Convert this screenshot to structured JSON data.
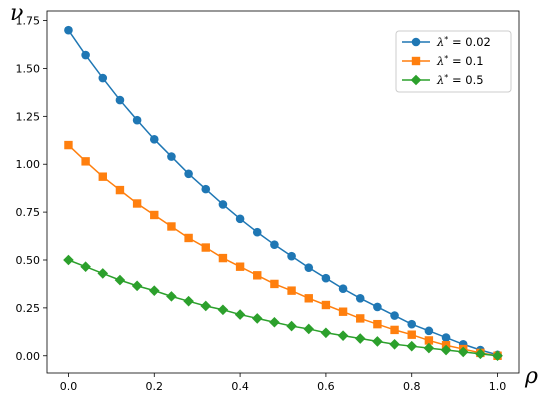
{
  "chart_data": {
    "type": "line",
    "xlabel": "ρ",
    "ylabel": "ν",
    "xlim": [
      -0.05,
      1.05
    ],
    "ylim": [
      -0.09,
      1.8
    ],
    "xticks": [
      0.0,
      0.2,
      0.4,
      0.6,
      0.8,
      1.0
    ],
    "xtick_labels": [
      "0.0",
      "0.2",
      "0.4",
      "0.6",
      "0.8",
      "1.0"
    ],
    "yticks": [
      0.0,
      0.25,
      0.5,
      0.75,
      1.0,
      1.25,
      1.5,
      1.75
    ],
    "ytick_labels": [
      "0.00",
      "0.25",
      "0.50",
      "0.75",
      "1.00",
      "1.25",
      "1.50",
      "1.75"
    ],
    "grid": false,
    "legend_position": "top-right",
    "x": [
      0.0,
      0.04,
      0.08,
      0.12,
      0.16,
      0.2,
      0.24,
      0.28,
      0.32,
      0.36,
      0.4,
      0.44,
      0.48,
      0.52,
      0.56,
      0.6,
      0.64,
      0.68,
      0.72,
      0.76,
      0.8,
      0.84,
      0.88,
      0.92,
      0.96,
      1.0
    ],
    "series": [
      {
        "name": "λ* = 0.02",
        "legend_symbol": "λ",
        "legend_value": "0.02",
        "color": "#1f77b4",
        "marker": "circle",
        "values": [
          1.7,
          1.57,
          1.45,
          1.335,
          1.23,
          1.13,
          1.04,
          0.95,
          0.87,
          0.79,
          0.715,
          0.645,
          0.58,
          0.52,
          0.46,
          0.405,
          0.35,
          0.3,
          0.255,
          0.21,
          0.165,
          0.13,
          0.095,
          0.06,
          0.03,
          0.005
        ]
      },
      {
        "name": "λ* = 0.1",
        "legend_symbol": "λ",
        "legend_value": "0.1",
        "color": "#ff7f0e",
        "marker": "square",
        "values": [
          1.1,
          1.015,
          0.935,
          0.865,
          0.795,
          0.735,
          0.675,
          0.615,
          0.565,
          0.51,
          0.465,
          0.42,
          0.375,
          0.34,
          0.3,
          0.265,
          0.23,
          0.195,
          0.165,
          0.135,
          0.11,
          0.08,
          0.055,
          0.035,
          0.015,
          0.0
        ]
      },
      {
        "name": "λ* = 0.5",
        "legend_symbol": "λ",
        "legend_value": "0.5",
        "color": "#2ca02c",
        "marker": "diamond",
        "values": [
          0.5,
          0.465,
          0.43,
          0.395,
          0.365,
          0.34,
          0.31,
          0.285,
          0.26,
          0.24,
          0.215,
          0.195,
          0.175,
          0.155,
          0.14,
          0.12,
          0.105,
          0.09,
          0.075,
          0.06,
          0.05,
          0.04,
          0.03,
          0.02,
          0.01,
          0.0
        ]
      }
    ]
  }
}
